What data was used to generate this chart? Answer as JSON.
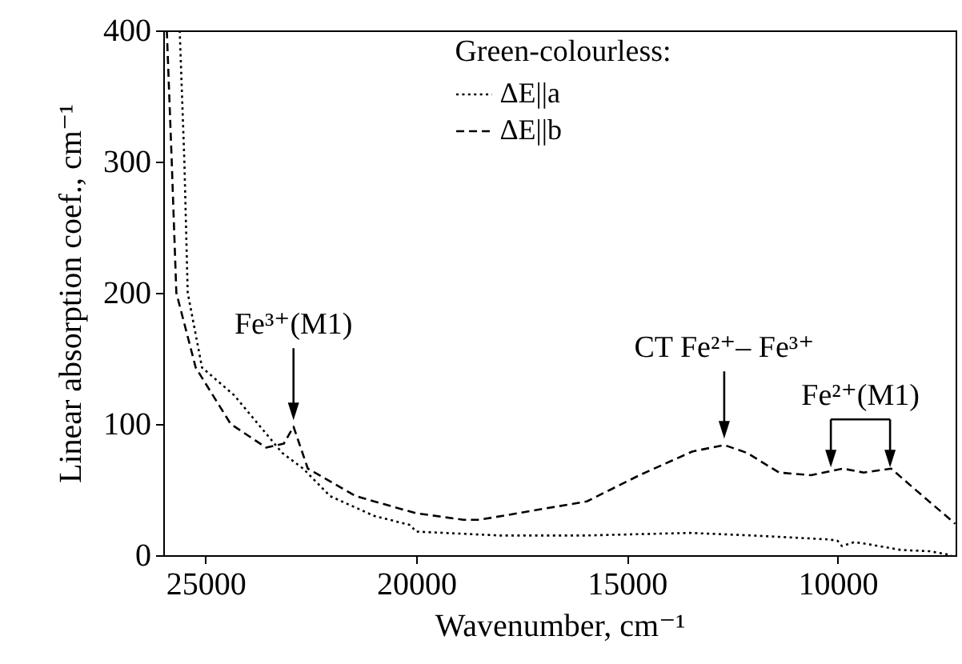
{
  "chart_data": {
    "type": "line",
    "xlabel": "Wavenumber, cm⁻¹",
    "ylabel": "Linear absorption coef., cm⁻¹",
    "legend_title": "Green-colourless:",
    "legend": "top",
    "xlim": [
      26000,
      7200
    ],
    "xticks": [
      25000,
      20000,
      15000,
      10000
    ],
    "ylim": [
      0,
      400
    ],
    "yticks": [
      0,
      100,
      200,
      300,
      400
    ],
    "series": [
      {
        "name": "ΔE||a",
        "color": "#000000",
        "line_style": "dotted",
        "x": [
          25610,
          25500,
          25420,
          25080,
          24320,
          23180,
          22680,
          22040,
          21000,
          20140,
          20000,
          18000,
          16000,
          13500,
          12000,
          10200,
          10000,
          9900,
          9600,
          9200,
          8500,
          7800,
          7300
        ],
        "values": [
          400,
          301,
          200,
          143,
          122,
          78,
          66,
          45,
          30,
          23,
          18,
          15,
          15,
          17,
          15,
          12,
          11,
          7,
          10,
          8,
          4,
          3,
          0
        ]
      },
      {
        "name": "ΔE||b",
        "color": "#000000",
        "line_style": "dashed",
        "x": [
          25916,
          25800,
          25690,
          25230,
          24400,
          23560,
          23140,
          22910,
          22570,
          21430,
          20000,
          18880,
          18500,
          15950,
          14700,
          13450,
          12690,
          12150,
          11390,
          10630,
          9870,
          9380,
          8730,
          8120,
          7210
        ],
        "values": [
          400,
          301,
          200,
          143,
          100,
          82,
          85,
          98,
          66,
          45,
          32,
          27,
          27,
          41,
          61,
          79,
          84,
          78,
          63,
          61,
          66,
          63,
          66,
          49,
          24
        ]
      }
    ],
    "annotations": [
      {
        "text": "Fe³⁺(M1)",
        "x": 22910,
        "y": 98
      },
      {
        "text": "CT Fe²⁺– Fe³⁺",
        "x": 12690,
        "y": 84
      },
      {
        "text": "Fe²⁺(M1)",
        "x": 10160,
        "y": 62
      }
    ]
  }
}
